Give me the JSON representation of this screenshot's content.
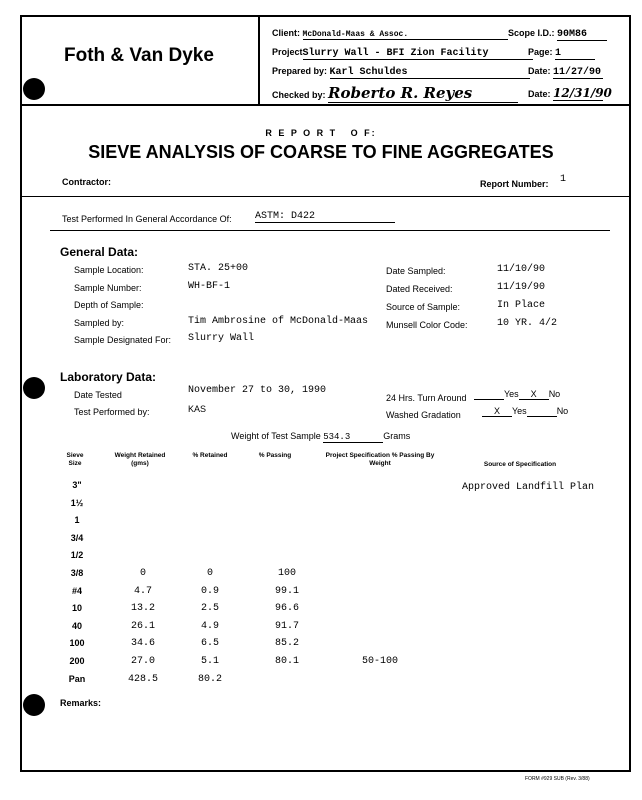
{
  "header": {
    "company": "Foth & Van Dyke",
    "client_label": "Client:",
    "client": "McDonald-Maas & Assoc.",
    "scope_label": "Scope I.D.:",
    "scope": "90M86",
    "project_label": "Project",
    "project": "Slurry Wall - BFI Zion Facility",
    "page_label": "Page:",
    "page": "1",
    "prepared_label": "Prepared by:",
    "prepared": "Karl Schuldes",
    "date1_label": "Date:",
    "date1": "11/27/90",
    "checked_label": "Checked by:",
    "checked": "Roberto R. Reyes",
    "date2_label": "Date:",
    "date2": "12/31/90"
  },
  "report": {
    "report_of": "R E P O R T   O F:",
    "title": "SIEVE ANALYSIS OF COARSE TO FINE AGGREGATES",
    "contractor_label": "Contractor:",
    "report_number_label": "Report Number:",
    "report_number": "1"
  },
  "test": {
    "label": "Test Performed In General Accordance Of:",
    "value": "ASTM: D422"
  },
  "general": {
    "heading": "General Data:",
    "left": [
      {
        "label": "Sample Location:",
        "value": "STA. 25+00"
      },
      {
        "label": "Sample Number:",
        "value": "WH-BF-1"
      },
      {
        "label": "Depth of Sample:",
        "value": ""
      },
      {
        "label": "Sampled by:",
        "value": "Tim Ambrosine of McDonald-Maas"
      },
      {
        "label": "Sample Designated For:",
        "value": "Slurry Wall"
      }
    ],
    "right": [
      {
        "label": "Date Sampled:",
        "value": "11/10/90"
      },
      {
        "label": "Dated Received:",
        "value": "11/19/90"
      },
      {
        "label": "Source of Sample:",
        "value": "In Place"
      },
      {
        "label": "Munsell Color Code:",
        "value": "10 YR. 4/2"
      }
    ]
  },
  "lab": {
    "heading": "Laboratory Data:",
    "date_tested_label": "Date Tested",
    "date_tested": "November 27 to 30, 1990",
    "performed_label": "Test Performed by:",
    "performed": "KAS",
    "turnaround_label": "24 Hrs. Turn Around",
    "washed_label": "Washed Gradation",
    "yes": "Yes",
    "no": "No",
    "turnaround_mark": "X",
    "washed_mark": "X",
    "weight_label": "Weight of Test Sample",
    "weight": "534.3",
    "grams": "Grams"
  },
  "table": {
    "headers": [
      "Sieve Size",
      "Weight Retained (gms)",
      "% Retained",
      "% Passing",
      "Project Specification % Passing By Weight",
      "Source of Specification"
    ],
    "source": "Approved Landfill Plan",
    "rows": [
      [
        "3\"",
        "",
        "",
        "",
        ""
      ],
      [
        "1½",
        "",
        "",
        "",
        ""
      ],
      [
        "1",
        "",
        "",
        "",
        ""
      ],
      [
        "3/4",
        "",
        "",
        "",
        ""
      ],
      [
        "1/2",
        "",
        "",
        "",
        ""
      ],
      [
        "3/8",
        "0",
        "0",
        "100",
        ""
      ],
      [
        "#4",
        "4.7",
        "0.9",
        "99.1",
        ""
      ],
      [
        "10",
        "13.2",
        "2.5",
        "96.6",
        ""
      ],
      [
        "40",
        "26.1",
        "4.9",
        "91.7",
        ""
      ],
      [
        "100",
        "34.6",
        "6.5",
        "85.2",
        ""
      ],
      [
        "200",
        "27.0",
        "5.1",
        "80.1",
        "50-100"
      ],
      [
        "Pan",
        "428.5",
        "80.2",
        "",
        ""
      ]
    ]
  },
  "remarks_label": "Remarks:",
  "footer": "FORM #929 SUB (Rev. 3/88)"
}
